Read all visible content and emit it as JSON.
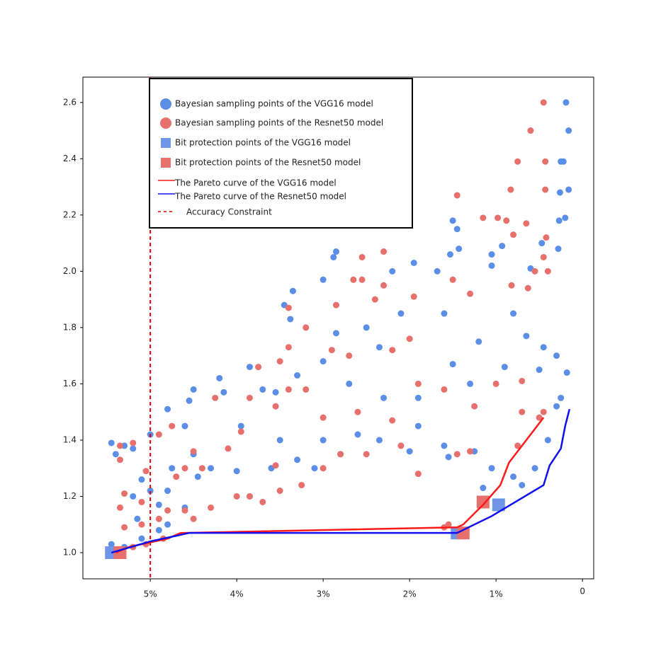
{
  "chart_data": {
    "type": "scatter",
    "xlim": [
      5.78,
      -0.13
    ],
    "ylim": [
      0.907,
      2.69
    ],
    "xticks": [
      {
        "value": 5,
        "label": "5%"
      },
      {
        "value": 4,
        "label": "4%"
      },
      {
        "value": 3,
        "label": "3%"
      },
      {
        "value": 2,
        "label": "2%"
      },
      {
        "value": 1,
        "label": "1%"
      },
      0
    ],
    "yticks": [
      {
        "value": 1.0,
        "label": "1.0"
      },
      1.2,
      1.4,
      1.6,
      1.8,
      {
        "value": 2.0,
        "label": "2.0"
      },
      2.2,
      2.4,
      2.6
    ],
    "grid": false,
    "legend": "upper left",
    "series": [
      {
        "name": "Bayesian sampling points of the VGG16 model",
        "marker": "circle",
        "color": "#5b8ee6",
        "x": [
          0.19,
          0.16,
          0.22,
          0.25,
          0.16,
          0.26,
          0.2,
          0.27,
          0.28,
          0.47,
          0.6,
          1.5,
          1.45,
          1.43,
          1.53,
          1.05,
          0.93,
          1.05,
          1.68,
          1.95,
          2.2,
          2.85,
          2.88,
          3.0,
          3.35,
          3.45,
          3.38,
          2.85,
          2.5,
          2.35,
          2.1,
          1.6,
          1.2,
          0.8,
          0.65,
          0.45,
          0.3,
          0.18,
          0.25,
          0.3,
          0.5,
          0.9,
          1.3,
          1.5,
          1.9,
          2.3,
          2.7,
          3.0,
          3.3,
          3.55,
          3.7,
          3.85,
          3.95,
          4.2,
          4.15,
          4.5,
          4.55,
          4.6,
          4.5,
          4.8,
          5.0,
          5.45,
          5.4,
          5.3,
          5.2,
          5.1,
          5.2,
          5.15,
          5.0,
          4.9,
          4.8,
          4.75,
          4.6,
          4.45,
          4.3,
          4.0,
          3.85,
          3.6,
          3.5,
          3.3,
          3.1,
          3.0,
          2.8,
          2.6,
          2.35,
          2.0,
          1.9,
          1.6,
          1.55,
          1.25,
          1.05,
          0.8,
          0.55,
          0.4,
          0.7,
          1.15,
          5.3,
          5.45,
          5.1,
          4.9,
          4.8
        ],
        "values": [
          2.6,
          2.5,
          2.39,
          2.39,
          2.29,
          2.28,
          2.19,
          2.18,
          2.08,
          2.1,
          2.01,
          2.18,
          2.15,
          2.08,
          2.06,
          2.06,
          2.09,
          2.02,
          2.0,
          2.03,
          2.0,
          2.07,
          2.05,
          1.97,
          1.93,
          1.88,
          1.83,
          1.78,
          1.8,
          1.73,
          1.85,
          1.85,
          1.75,
          1.85,
          1.77,
          1.73,
          1.7,
          1.64,
          1.55,
          1.52,
          1.65,
          1.66,
          1.6,
          1.67,
          1.55,
          1.55,
          1.6,
          1.68,
          1.63,
          1.57,
          1.58,
          1.66,
          1.45,
          1.62,
          1.57,
          1.58,
          1.54,
          1.45,
          1.35,
          1.51,
          1.42,
          1.39,
          1.35,
          1.38,
          1.37,
          1.26,
          1.2,
          1.12,
          1.22,
          1.17,
          1.22,
          1.3,
          1.16,
          1.27,
          1.3,
          1.29,
          1.2,
          1.3,
          1.4,
          1.33,
          1.3,
          1.4,
          1.35,
          1.42,
          1.4,
          1.36,
          1.45,
          1.38,
          1.34,
          1.36,
          1.3,
          1.27,
          1.3,
          1.4,
          1.24,
          1.23,
          1.02,
          1.03,
          1.05,
          1.08,
          1.1
        ]
      },
      {
        "name": "Bayesian sampling points of the Resnet50 model",
        "marker": "circle",
        "color": "#e8706c",
        "x": [
          0.45,
          0.6,
          0.75,
          0.43,
          0.43,
          0.83,
          1.45,
          1.15,
          0.98,
          0.88,
          0.65,
          0.8,
          0.42,
          0.55,
          0.45,
          0.4,
          0.63,
          0.82,
          1.3,
          1.5,
          1.95,
          2.3,
          2.3,
          2.55,
          2.55,
          2.65,
          2.85,
          3.4,
          3.2,
          2.4,
          2.0,
          2.2,
          2.7,
          2.9,
          3.4,
          3.5,
          3.2,
          3.55,
          3.75,
          3.85,
          3.4,
          3.0,
          2.6,
          2.2,
          1.9,
          1.6,
          1.25,
          1.0,
          0.7,
          0.45,
          0.7,
          1.3,
          1.45,
          1.9,
          2.1,
          2.5,
          2.8,
          3.0,
          3.25,
          3.55,
          3.7,
          3.95,
          4.1,
          4.25,
          4.4,
          4.5,
          4.6,
          4.7,
          4.75,
          4.9,
          5.05,
          5.2,
          5.35,
          5.35,
          5.3,
          5.35,
          5.3,
          5.1,
          5.1,
          4.9,
          4.8,
          4.6,
          4.5,
          4.3,
          4.0,
          3.85,
          3.5,
          5.2,
          5.05,
          4.85,
          1.55,
          1.6,
          0.75,
          0.5
        ],
        "values": [
          2.6,
          2.5,
          2.39,
          2.39,
          2.29,
          2.29,
          2.27,
          2.19,
          2.19,
          2.18,
          2.17,
          2.13,
          2.12,
          2.0,
          2.05,
          2.0,
          1.94,
          1.95,
          1.92,
          1.97,
          1.91,
          1.95,
          2.07,
          2.05,
          1.97,
          1.97,
          1.88,
          1.87,
          1.8,
          1.9,
          1.76,
          1.72,
          1.7,
          1.72,
          1.73,
          1.68,
          1.58,
          1.52,
          1.66,
          1.55,
          1.58,
          1.48,
          1.5,
          1.47,
          1.6,
          1.58,
          1.52,
          1.6,
          1.61,
          1.5,
          1.5,
          1.36,
          1.35,
          1.28,
          1.38,
          1.35,
          1.35,
          1.3,
          1.24,
          1.31,
          1.18,
          1.43,
          1.37,
          1.55,
          1.3,
          1.36,
          1.3,
          1.27,
          1.45,
          1.42,
          1.29,
          1.39,
          1.38,
          1.33,
          1.21,
          1.16,
          1.09,
          1.18,
          1.1,
          1.12,
          1.15,
          1.15,
          1.12,
          1.16,
          1.2,
          1.2,
          1.22,
          1.02,
          1.03,
          1.05,
          1.1,
          1.09,
          1.38,
          1.48
        ]
      },
      {
        "name": "Bit protection points of the VGG16 model",
        "marker": "square",
        "color": "#6f95e8",
        "x": [
          5.45,
          1.45,
          0.97
        ],
        "values": [
          1.0,
          1.07,
          1.17
        ]
      },
      {
        "name": "Bit protection points of the Resnet50 model",
        "marker": "square",
        "color": "#e8706c",
        "x": [
          5.35,
          1.38,
          1.15
        ],
        "values": [
          1.0,
          1.07,
          1.18
        ]
      },
      {
        "name": "The Pareto curve of the VGG16 model",
        "marker": "line",
        "color": "#ff1a1a",
        "x": [
          5.4,
          5.25,
          4.8,
          4.65,
          1.45,
          1.38,
          1.15,
          0.95,
          0.85,
          0.45
        ],
        "values": [
          1.0,
          1.02,
          1.05,
          1.07,
          1.09,
          1.1,
          1.17,
          1.24,
          1.32,
          1.48
        ]
      },
      {
        "name": "The Pareto curve of the Resnet50 model",
        "marker": "line",
        "color": "#1010ee",
        "x": [
          5.45,
          5.0,
          4.55,
          1.45,
          1.05,
          0.45,
          0.38,
          0.25,
          0.2,
          0.15
        ],
        "values": [
          1.0,
          1.04,
          1.07,
          1.07,
          1.13,
          1.24,
          1.31,
          1.37,
          1.45,
          1.51
        ]
      }
    ],
    "constraint": {
      "name": "Accuracy Constraint",
      "x": 5,
      "color": "#dd0000"
    }
  }
}
